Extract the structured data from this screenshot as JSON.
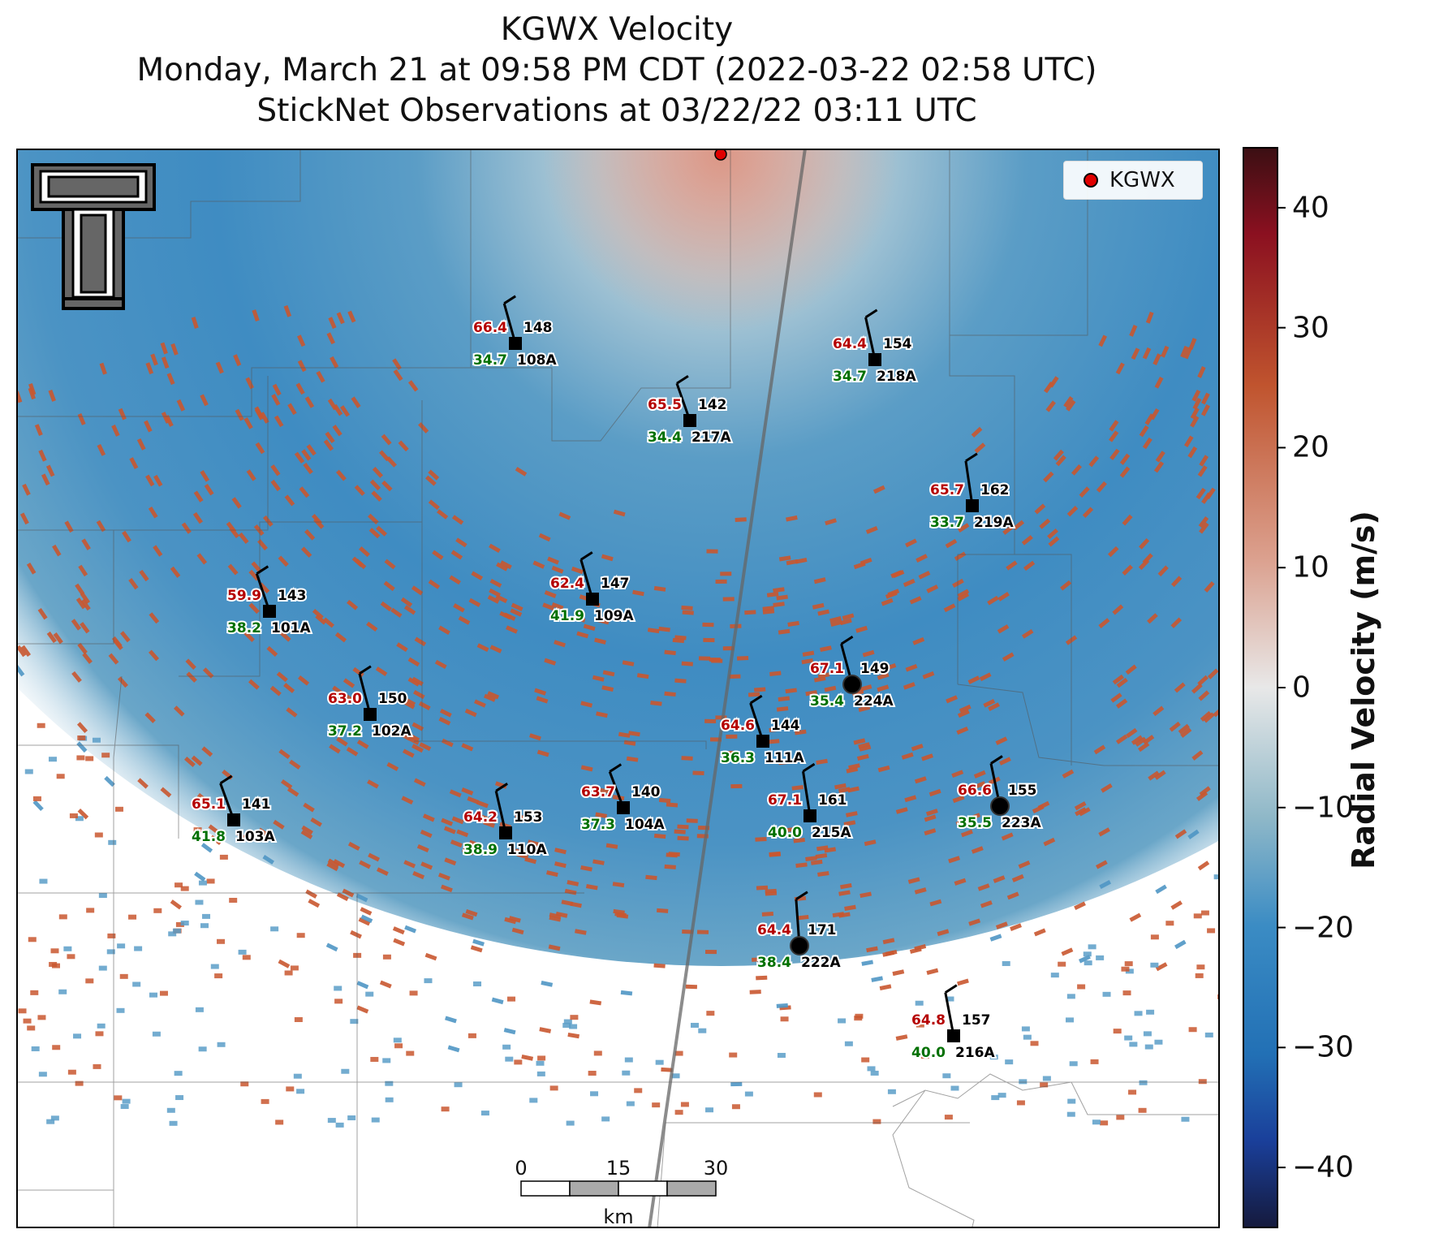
{
  "header": {
    "title_line1": "KGWX Velocity",
    "title_line2": "Monday, March 21 at 09:58 PM CDT (2022-03-22 02:58 UTC)",
    "title_line3": "StickNet Observations at 03/22/22 03:11 UTC"
  },
  "legend": {
    "label": "KGWX",
    "marker_color": "#e00000"
  },
  "colorbar": {
    "label": "Radial Velocity (m/s)",
    "ticks": [
      "40",
      "30",
      "20",
      "10",
      "0",
      "−10",
      "−20",
      "−30",
      "−40"
    ],
    "range": [
      -45,
      45
    ],
    "colors": [
      "#151a3d",
      "#1a3f9a",
      "#2270b5",
      "#3b8cc4",
      "#8fb8c8",
      "#e8e8e8",
      "#dba08e",
      "#c0542e",
      "#8b1020",
      "#3b0f13"
    ]
  },
  "scale_bar": {
    "ticks": [
      "0",
      "15",
      "30"
    ],
    "unit": "km"
  },
  "logo": {
    "icon": "texas-tech-double-t-logo"
  },
  "stations": [
    {
      "id": "108A",
      "temp": "66.4",
      "dir": "148",
      "dew": "34.7"
    },
    {
      "id": "218A",
      "temp": "64.4",
      "dir": "154",
      "dew": "34.7"
    },
    {
      "id": "217A",
      "temp": "65.5",
      "dir": "142",
      "dew": "34.4"
    },
    {
      "id": "219A",
      "temp": "65.7",
      "dir": "162",
      "dew": "33.7"
    },
    {
      "id": "101A",
      "temp": "59.9",
      "dir": "143",
      "dew": "38.2"
    },
    {
      "id": "109A",
      "temp": "62.4",
      "dir": "147",
      "dew": "41.9"
    },
    {
      "id": "224A",
      "temp": "67.1",
      "dir": "149",
      "dew": "35.4"
    },
    {
      "id": "102A",
      "temp": "63.0",
      "dir": "150",
      "dew": "37.2"
    },
    {
      "id": "111A",
      "temp": "64.6",
      "dir": "144",
      "dew": "36.3"
    },
    {
      "id": "103A",
      "temp": "65.1",
      "dir": "141",
      "dew": "41.8"
    },
    {
      "id": "104A",
      "temp": "63.7",
      "dir": "140",
      "dew": "37.3"
    },
    {
      "id": "110A",
      "temp": "64.2",
      "dir": "153",
      "dew": "38.9"
    },
    {
      "id": "215A",
      "temp": "67.1",
      "dir": "161",
      "dew": "40.0"
    },
    {
      "id": "223A",
      "temp": "66.6",
      "dir": "155",
      "dew": "35.5"
    },
    {
      "id": "222A",
      "temp": "64.4",
      "dir": "171",
      "dew": "38.4"
    },
    {
      "id": "216A",
      "temp": "64.8",
      "dir": "157",
      "dew": "40.0"
    }
  ]
}
